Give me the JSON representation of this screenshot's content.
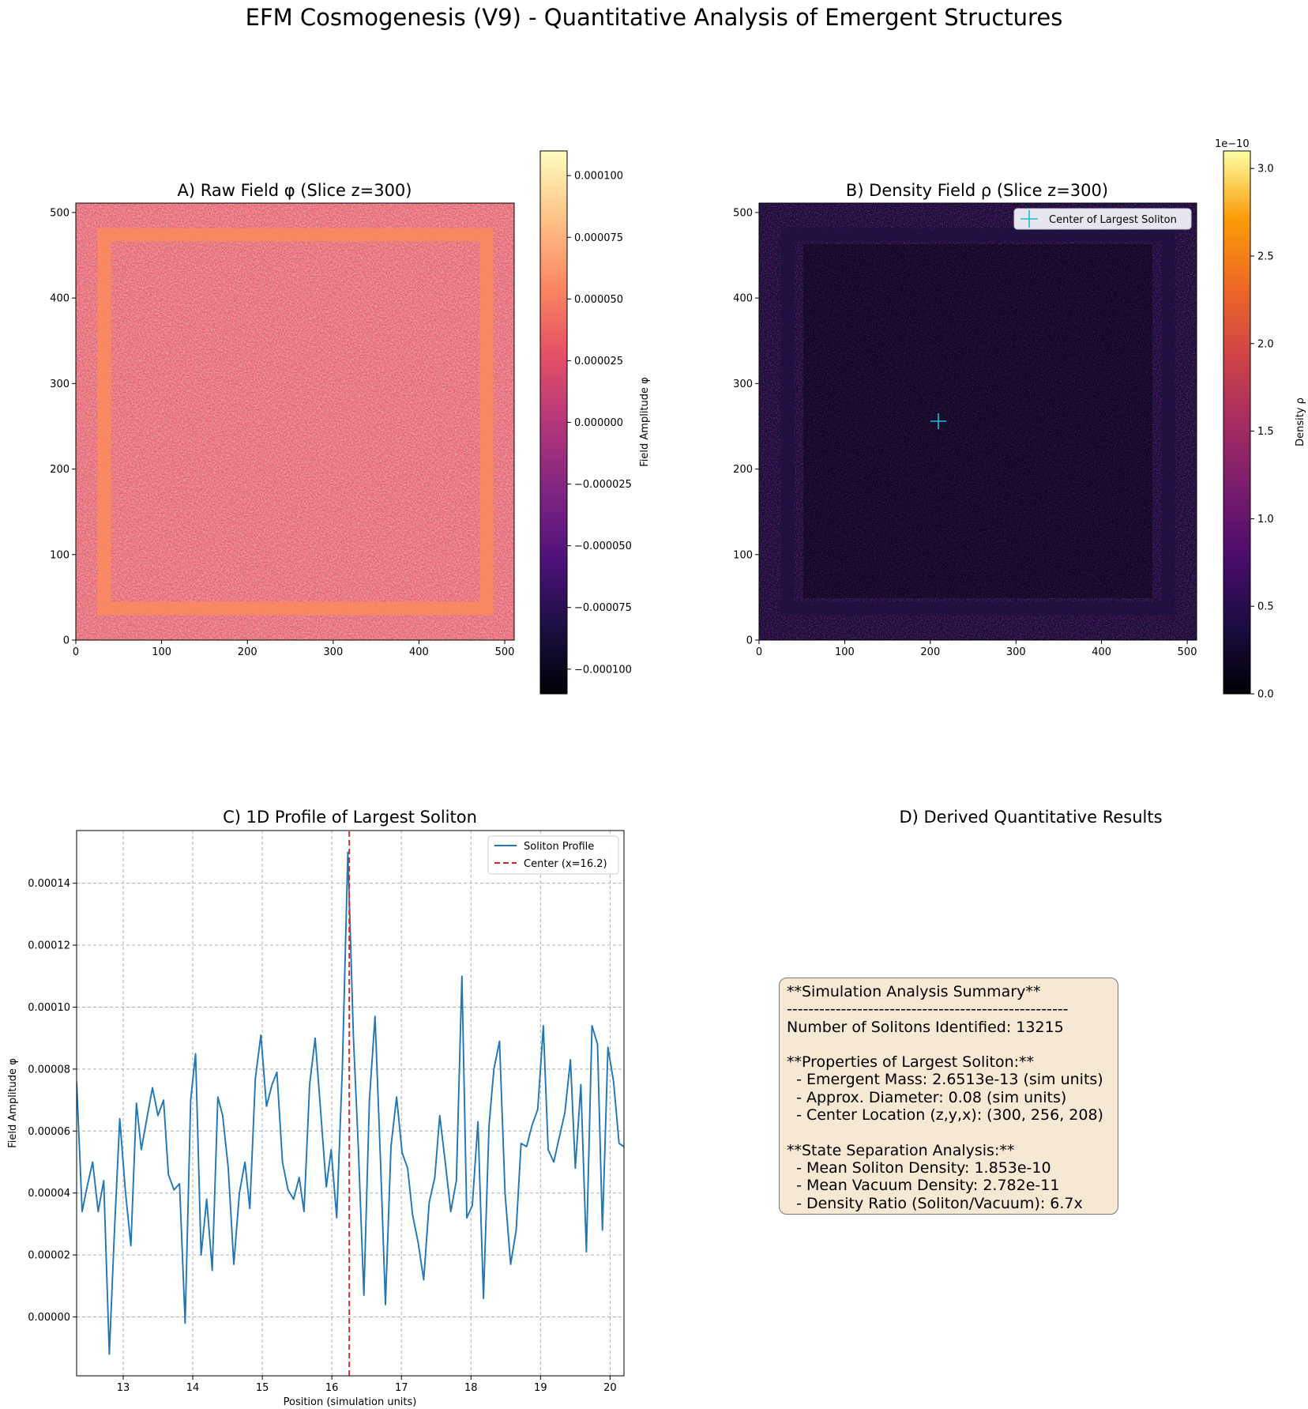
{
  "figure": {
    "suptitle": "EFM Cosmogenesis (V9) - Quantitative Analysis of Emergent Structures"
  },
  "panel_a": {
    "title": "A) Raw Field φ (Slice z=300)",
    "x_ticks": [
      "0",
      "100",
      "200",
      "300",
      "400",
      "500"
    ],
    "y_ticks": [
      "0",
      "100",
      "200",
      "300",
      "400",
      "500"
    ],
    "colorbar_label": "Field Amplitude φ",
    "colorbar_ticks": [
      "0.000100",
      "0.000075",
      "0.000050",
      "0.000025",
      "0.000000",
      "−0.000025",
      "−0.000050",
      "−0.000075",
      "−0.000100"
    ],
    "colormap": "magma"
  },
  "panel_b": {
    "title": "B) Density Field ρ (Slice z=300)",
    "x_ticks": [
      "0",
      "100",
      "200",
      "300",
      "400",
      "500"
    ],
    "y_ticks": [
      "0",
      "100",
      "200",
      "300",
      "400",
      "500"
    ],
    "legend": "Center of Largest Soliton",
    "marker_color": "#17becf",
    "colorbar_label": "Density ρ",
    "colorbar_offset": "1e−10",
    "colorbar_ticks": [
      "3.0",
      "2.5",
      "2.0",
      "1.5",
      "1.0",
      "0.5",
      "0.0"
    ],
    "colormap": "inferno"
  },
  "panel_c": {
    "title": "C) 1D Profile of Largest Soliton",
    "xlabel": "Position (simulation units)",
    "ylabel": "Field Amplitude φ",
    "legend_profile": "Soliton Profile",
    "legend_center": "Center (x=16.2)",
    "x_ticks": [
      "13",
      "14",
      "15",
      "16",
      "17",
      "18",
      "19",
      "20"
    ],
    "y_ticks": [
      "0.00014",
      "0.00012",
      "0.00010",
      "0.00008",
      "0.00006",
      "0.00004",
      "0.00002",
      "0.00000"
    ],
    "line_color": "#1f77b4",
    "center_color": "#d62728"
  },
  "panel_d": {
    "title": "D) Derived Quantitative Results",
    "summary_lines": [
      "**Simulation Analysis Summary**",
      "----------------------------------------------------",
      "Number of Solitons Identified: 13215",
      "",
      "**Properties of Largest Soliton:**",
      "  - Emergent Mass: 2.6513e-13 (sim units)",
      "  - Approx. Diameter: 0.08 (sim units)",
      "  - Center Location (z,y,x): (300, 256, 208)",
      "",
      "**State Separation Analysis:**",
      "  - Mean Soliton Density: 1.853e-10",
      "  - Mean Vacuum Density: 2.782e-11",
      "  - Density Ratio (Soliton/Vacuum): 6.7x"
    ],
    "box_color": "#f5e9d3"
  },
  "chart_data": [
    {
      "type": "heatmap",
      "title": "A) Raw Field φ (Slice z=300)",
      "xlabel": "",
      "ylabel": "",
      "xlim": [
        0,
        511
      ],
      "ylim": [
        0,
        511
      ],
      "colorbar": {
        "label": "Field Amplitude φ",
        "range": [
          -0.00011,
          0.00011
        ]
      },
      "features": {
        "interior_noise_range": [
          -5e-05,
          0.00011
        ],
        "frame_band": {
          "from": 35,
          "to": 50,
          "value": 6e-05
        }
      }
    },
    {
      "type": "heatmap",
      "title": "B) Density Field ρ (Slice z=300)",
      "xlabel": "",
      "ylabel": "",
      "xlim": [
        0,
        511
      ],
      "ylim": [
        0,
        511
      ],
      "colorbar": {
        "label": "Density ρ",
        "range": [
          0,
          3.1e-10
        ]
      },
      "marker": {
        "label": "Center of Largest Soliton",
        "x": 208,
        "y": 256
      }
    },
    {
      "type": "line",
      "title": "C) 1D Profile of Largest Soliton",
      "xlabel": "Position (simulation units)",
      "ylabel": "Field Amplitude φ",
      "xlim": [
        12.33,
        20.2
      ],
      "ylim": [
        -1.9e-05,
        0.000157
      ],
      "grid": true,
      "legend_position": "top-right",
      "series": [
        {
          "name": "Soliton Profile",
          "x": [
            12.33,
            12.41,
            12.48,
            12.56,
            12.64,
            12.72,
            12.8,
            12.87,
            12.95,
            13.03,
            13.11,
            13.19,
            13.26,
            13.34,
            13.42,
            13.5,
            13.58,
            13.65,
            13.73,
            13.81,
            13.89,
            13.97,
            14.04,
            14.12,
            14.2,
            14.28,
            14.36,
            14.43,
            14.51,
            14.59,
            14.67,
            14.75,
            14.82,
            14.9,
            14.98,
            15.06,
            15.14,
            15.21,
            15.29,
            15.37,
            15.45,
            15.53,
            15.6,
            15.68,
            15.76,
            15.84,
            15.92,
            15.99,
            16.07,
            16.15,
            16.23,
            16.31,
            16.38,
            16.46,
            16.54,
            16.62,
            16.7,
            16.77,
            16.85,
            16.93,
            17.01,
            17.09,
            17.16,
            17.24,
            17.32,
            17.4,
            17.48,
            17.55,
            17.63,
            17.71,
            17.79,
            17.87,
            17.94,
            18.02,
            18.1,
            18.18,
            18.26,
            18.33,
            18.41,
            18.49,
            18.57,
            18.65,
            18.72,
            18.8,
            18.88,
            18.96,
            19.04,
            19.11,
            19.19,
            19.27,
            19.35,
            19.43,
            19.5,
            19.58,
            19.66,
            19.74,
            19.82,
            19.89,
            19.97,
            20.05,
            20.13,
            20.2
          ],
          "y": [
            7.6e-05,
            3.4e-05,
            4.2e-05,
            5e-05,
            3.4e-05,
            4.4e-05,
            -1.2e-05,
            2.6e-05,
            6.4e-05,
            4.1e-05,
            2.3e-05,
            6.9e-05,
            5.4e-05,
            6.4e-05,
            7.4e-05,
            6.5e-05,
            7e-05,
            4.6e-05,
            4.1e-05,
            4.3e-05,
            -2e-06,
            7e-05,
            8.5e-05,
            2e-05,
            3.8e-05,
            1.5e-05,
            7.1e-05,
            6.5e-05,
            4.8e-05,
            1.7e-05,
            4e-05,
            5e-05,
            3.5e-05,
            7.7e-05,
            9.1e-05,
            6.8e-05,
            7.5e-05,
            7.9e-05,
            5e-05,
            4.1e-05,
            3.8e-05,
            4.5e-05,
            3.4e-05,
            7.5e-05,
            9e-05,
            6.6e-05,
            4.2e-05,
            5.4e-05,
            3.2e-05,
            8e-05,
            0.00015,
            9e-05,
            5.5e-05,
            7e-06,
            7e-05,
            9.7e-05,
            5e-05,
            4e-06,
            5.5e-05,
            7.1e-05,
            5.3e-05,
            4.8e-05,
            3.3e-05,
            2.4e-05,
            1.2e-05,
            3.7e-05,
            4.5e-05,
            6.5e-05,
            5e-05,
            3.4e-05,
            4.4e-05,
            0.00011,
            3.2e-05,
            3.6e-05,
            6.3e-05,
            6e-06,
            6.2e-05,
            8e-05,
            8.9e-05,
            4e-05,
            1.7e-05,
            2.8e-05,
            5.6e-05,
            5.5e-05,
            6.2e-05,
            6.7e-05,
            9.4e-05,
            5.4e-05,
            5e-05,
            5.8e-05,
            6.6e-05,
            8.3e-05,
            4.8e-05,
            7.5e-05,
            2.1e-05,
            9.4e-05,
            8.8e-05,
            2.8e-05,
            8.7e-05,
            7.6e-05,
            5.6e-05,
            5.5e-05
          ]
        },
        {
          "name": "Center (x=16.2)",
          "x": [
            16.25,
            16.25
          ],
          "y": [
            -1.9e-05,
            0.000157
          ]
        }
      ]
    }
  ]
}
